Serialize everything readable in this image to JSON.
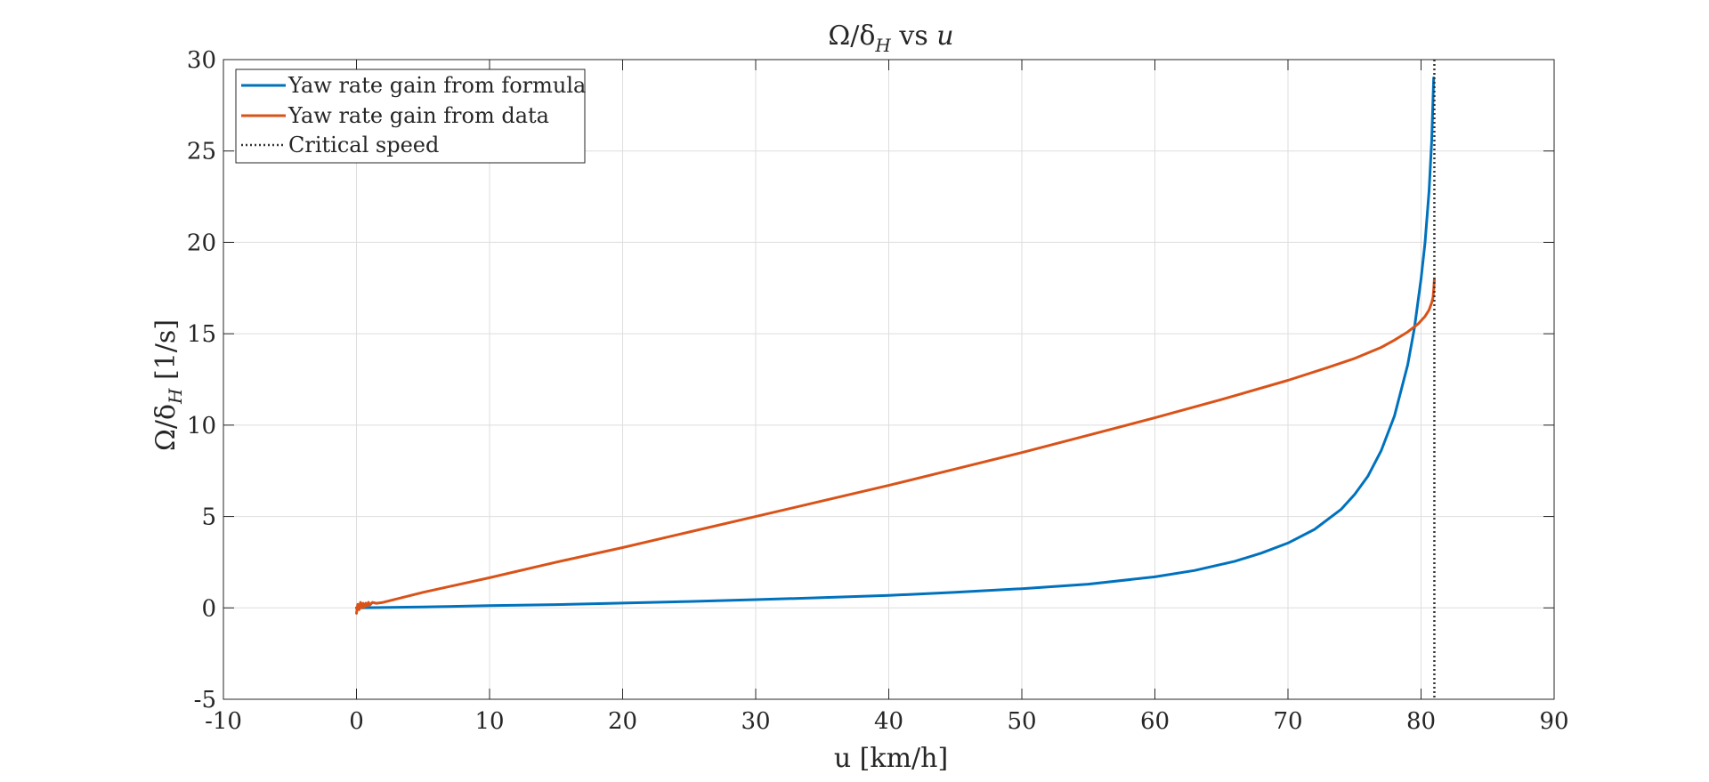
{
  "chart_data": {
    "type": "line",
    "title": {
      "lhs": "Ω/δ",
      "lhs_sub": "H",
      "mid": " vs ",
      "rhs": "u"
    },
    "xlabel": "u [km/h]",
    "ylabel": {
      "main": "Ω/δ",
      "sub": "H",
      "unit": " [1/s]"
    },
    "xlim": [
      -10,
      90
    ],
    "ylim": [
      -5,
      30
    ],
    "xticks": [
      -10,
      0,
      10,
      20,
      30,
      40,
      50,
      60,
      70,
      80,
      90
    ],
    "yticks": [
      -5,
      0,
      5,
      10,
      15,
      20,
      25,
      30
    ],
    "grid": true,
    "legend_position": "top-left",
    "critical_speed": 81,
    "series": [
      {
        "name": "Yaw rate gain from formula",
        "color": "#0072BD",
        "style": "solid",
        "x": [
          0,
          5,
          10,
          15,
          20,
          25,
          30,
          35,
          40,
          45,
          50,
          55,
          60,
          63,
          66,
          68,
          70,
          72,
          74,
          75,
          76,
          77,
          78,
          79,
          79.5,
          80,
          80.3,
          80.6,
          80.8,
          80.95
        ],
        "y": [
          0,
          0.05,
          0.12,
          0.18,
          0.26,
          0.35,
          0.45,
          0.56,
          0.68,
          0.85,
          1.05,
          1.3,
          1.7,
          2.05,
          2.55,
          3.0,
          3.55,
          4.3,
          5.4,
          6.2,
          7.2,
          8.6,
          10.5,
          13.3,
          15.3,
          18.0,
          20.0,
          22.8,
          25.6,
          29.0
        ]
      },
      {
        "name": "Yaw rate gain from data",
        "color": "#D95319",
        "style": "solid",
        "x": [
          0,
          0.1,
          0.2,
          0.3,
          0.4,
          0.5,
          0.6,
          0.7,
          0.8,
          0.9,
          1.0,
          1.2,
          1.5,
          2,
          5,
          10,
          15,
          20,
          25,
          30,
          35,
          40,
          45,
          50,
          55,
          60,
          65,
          70,
          73,
          75,
          77,
          78,
          79,
          79.8,
          80.3,
          80.6,
          80.8,
          80.9,
          80.95,
          81
        ],
        "y": [
          -0.3,
          0.2,
          -0.1,
          0.3,
          0.0,
          0.25,
          0.05,
          0.25,
          0.1,
          0.3,
          0.15,
          0.3,
          0.25,
          0.3,
          0.85,
          1.65,
          2.5,
          3.3,
          4.15,
          5.0,
          5.85,
          6.7,
          7.6,
          8.5,
          9.45,
          10.4,
          11.4,
          12.45,
          13.15,
          13.65,
          14.25,
          14.65,
          15.1,
          15.55,
          15.95,
          16.3,
          16.7,
          17.0,
          17.4,
          18.0
        ]
      },
      {
        "name": "Critical speed",
        "color": "#333333",
        "style": "dotted"
      }
    ]
  }
}
